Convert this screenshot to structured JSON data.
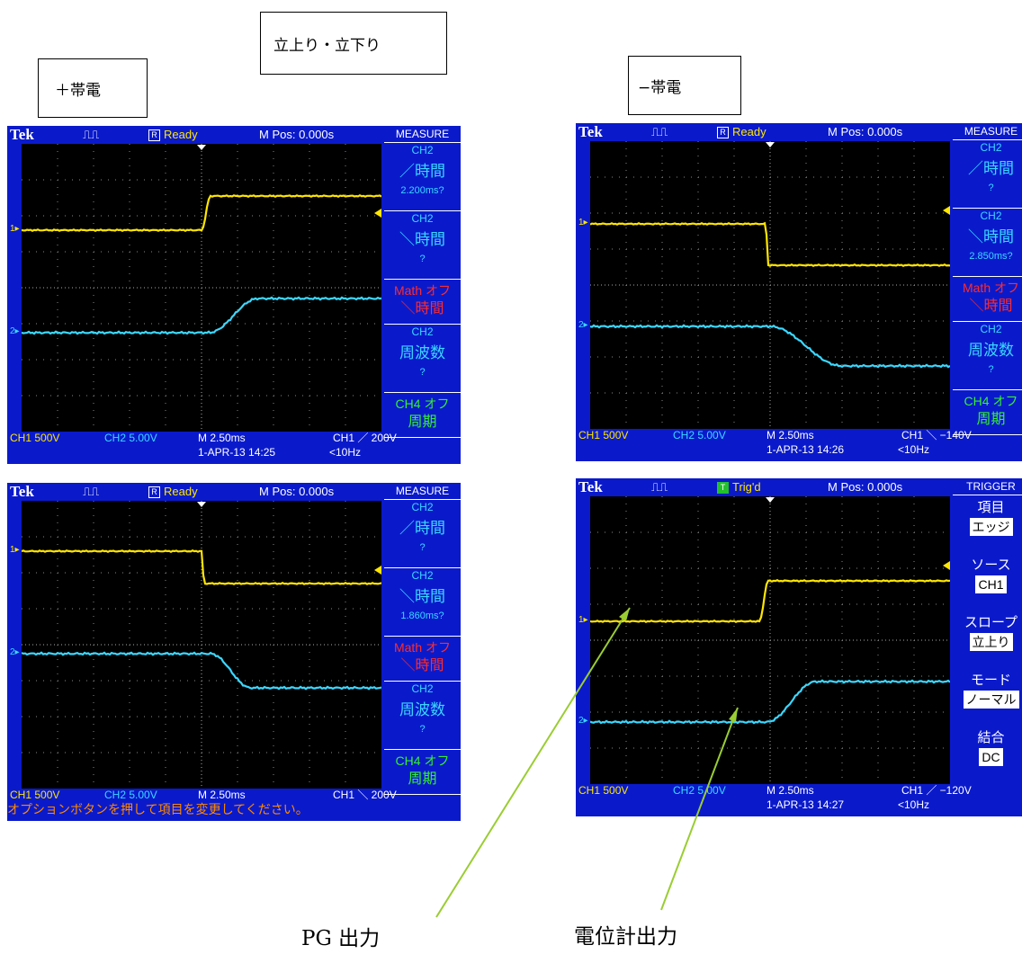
{
  "labels": {
    "rise_fall": "立上り・立下り",
    "positive": "＋帯電",
    "negative": "−帯電",
    "pg_output": "PG 出力",
    "meter_output": "電位計出力"
  },
  "colors": {
    "scope_bg": "#0a1acb",
    "ch1": "#ffe600",
    "ch2": "#3bd8ff",
    "math": "#ff2b2b",
    "ch4": "#35ee35",
    "pointer": "#9acd32"
  },
  "scopes": [
    {
      "brand": "Tek",
      "status": "Ready",
      "status_icon": "R",
      "mpos": "M Pos: 0.000s",
      "menu_title": "MEASURE",
      "menu": [
        {
          "ch": "CH2",
          "name": "／時間",
          "val": "2.200ms?"
        },
        {
          "ch": "CH2",
          "name": "＼時間",
          "val": "?"
        },
        {
          "ch": "Math オフ",
          "name": "＼時間",
          "val": ""
        },
        {
          "ch": "CH2",
          "name": "周波数",
          "val": "?"
        },
        {
          "ch": "CH4 オフ",
          "name": "周期",
          "val": ""
        }
      ],
      "ch1_scale": "CH1  500V",
      "ch2_scale": "CH2  5.00V",
      "timebase": "M 2.50ms",
      "trigger": "CH1 ／ 200V",
      "date": "1-APR-13 14:25",
      "freq": "<10Hz",
      "message": ""
    },
    {
      "brand": "Tek",
      "status": "Ready",
      "status_icon": "R",
      "mpos": "M Pos: 0.000s",
      "menu_title": "MEASURE",
      "menu": [
        {
          "ch": "CH2",
          "name": "／時間",
          "val": "?"
        },
        {
          "ch": "CH2",
          "name": "＼時間",
          "val": "2.850ms?"
        },
        {
          "ch": "Math オフ",
          "name": "＼時間",
          "val": ""
        },
        {
          "ch": "CH2",
          "name": "周波数",
          "val": "?"
        },
        {
          "ch": "CH4 オフ",
          "name": "周期",
          "val": ""
        }
      ],
      "ch1_scale": "CH1  500V",
      "ch2_scale": "CH2  5.00V",
      "timebase": "M 2.50ms",
      "trigger": "CH1 ＼ −140V",
      "date": "1-APR-13 14:26",
      "freq": "<10Hz",
      "message": ""
    },
    {
      "brand": "Tek",
      "status": "Ready",
      "status_icon": "R",
      "mpos": "M Pos: 0.000s",
      "menu_title": "MEASURE",
      "menu": [
        {
          "ch": "CH2",
          "name": "／時間",
          "val": "?"
        },
        {
          "ch": "CH2",
          "name": "＼時間",
          "val": "1.860ms?"
        },
        {
          "ch": "Math オフ",
          "name": "＼時間",
          "val": ""
        },
        {
          "ch": "CH2",
          "name": "周波数",
          "val": "?"
        },
        {
          "ch": "CH4 オフ",
          "name": "周期",
          "val": ""
        }
      ],
      "ch1_scale": "CH1  500V",
      "ch2_scale": "CH2  5.00V",
      "timebase": "M 2.50ms",
      "trigger": "CH1 ＼ 200V",
      "date": "",
      "freq": "",
      "message": "オプションボタンを押して項目を変更してください。"
    },
    {
      "brand": "Tek",
      "status": "Trig'd",
      "status_icon": "T",
      "mpos": "M Pos: 0.000s",
      "menu_title": "TRIGGER",
      "trigger_menu": [
        {
          "label": "項目",
          "value": "エッジ"
        },
        {
          "label": "ソース",
          "value": "CH1"
        },
        {
          "label": "スロープ",
          "value": "立上り"
        },
        {
          "label": "モード",
          "value": "ノーマル"
        },
        {
          "label": "結合",
          "value": "DC"
        }
      ],
      "ch1_scale": "CH1  500V",
      "ch2_scale": "CH2  5.00V",
      "timebase": "M 2.50ms",
      "trigger": "CH1 ／ −120V",
      "date": "1-APR-13 14:27",
      "freq": "<10Hz",
      "message": ""
    }
  ]
}
